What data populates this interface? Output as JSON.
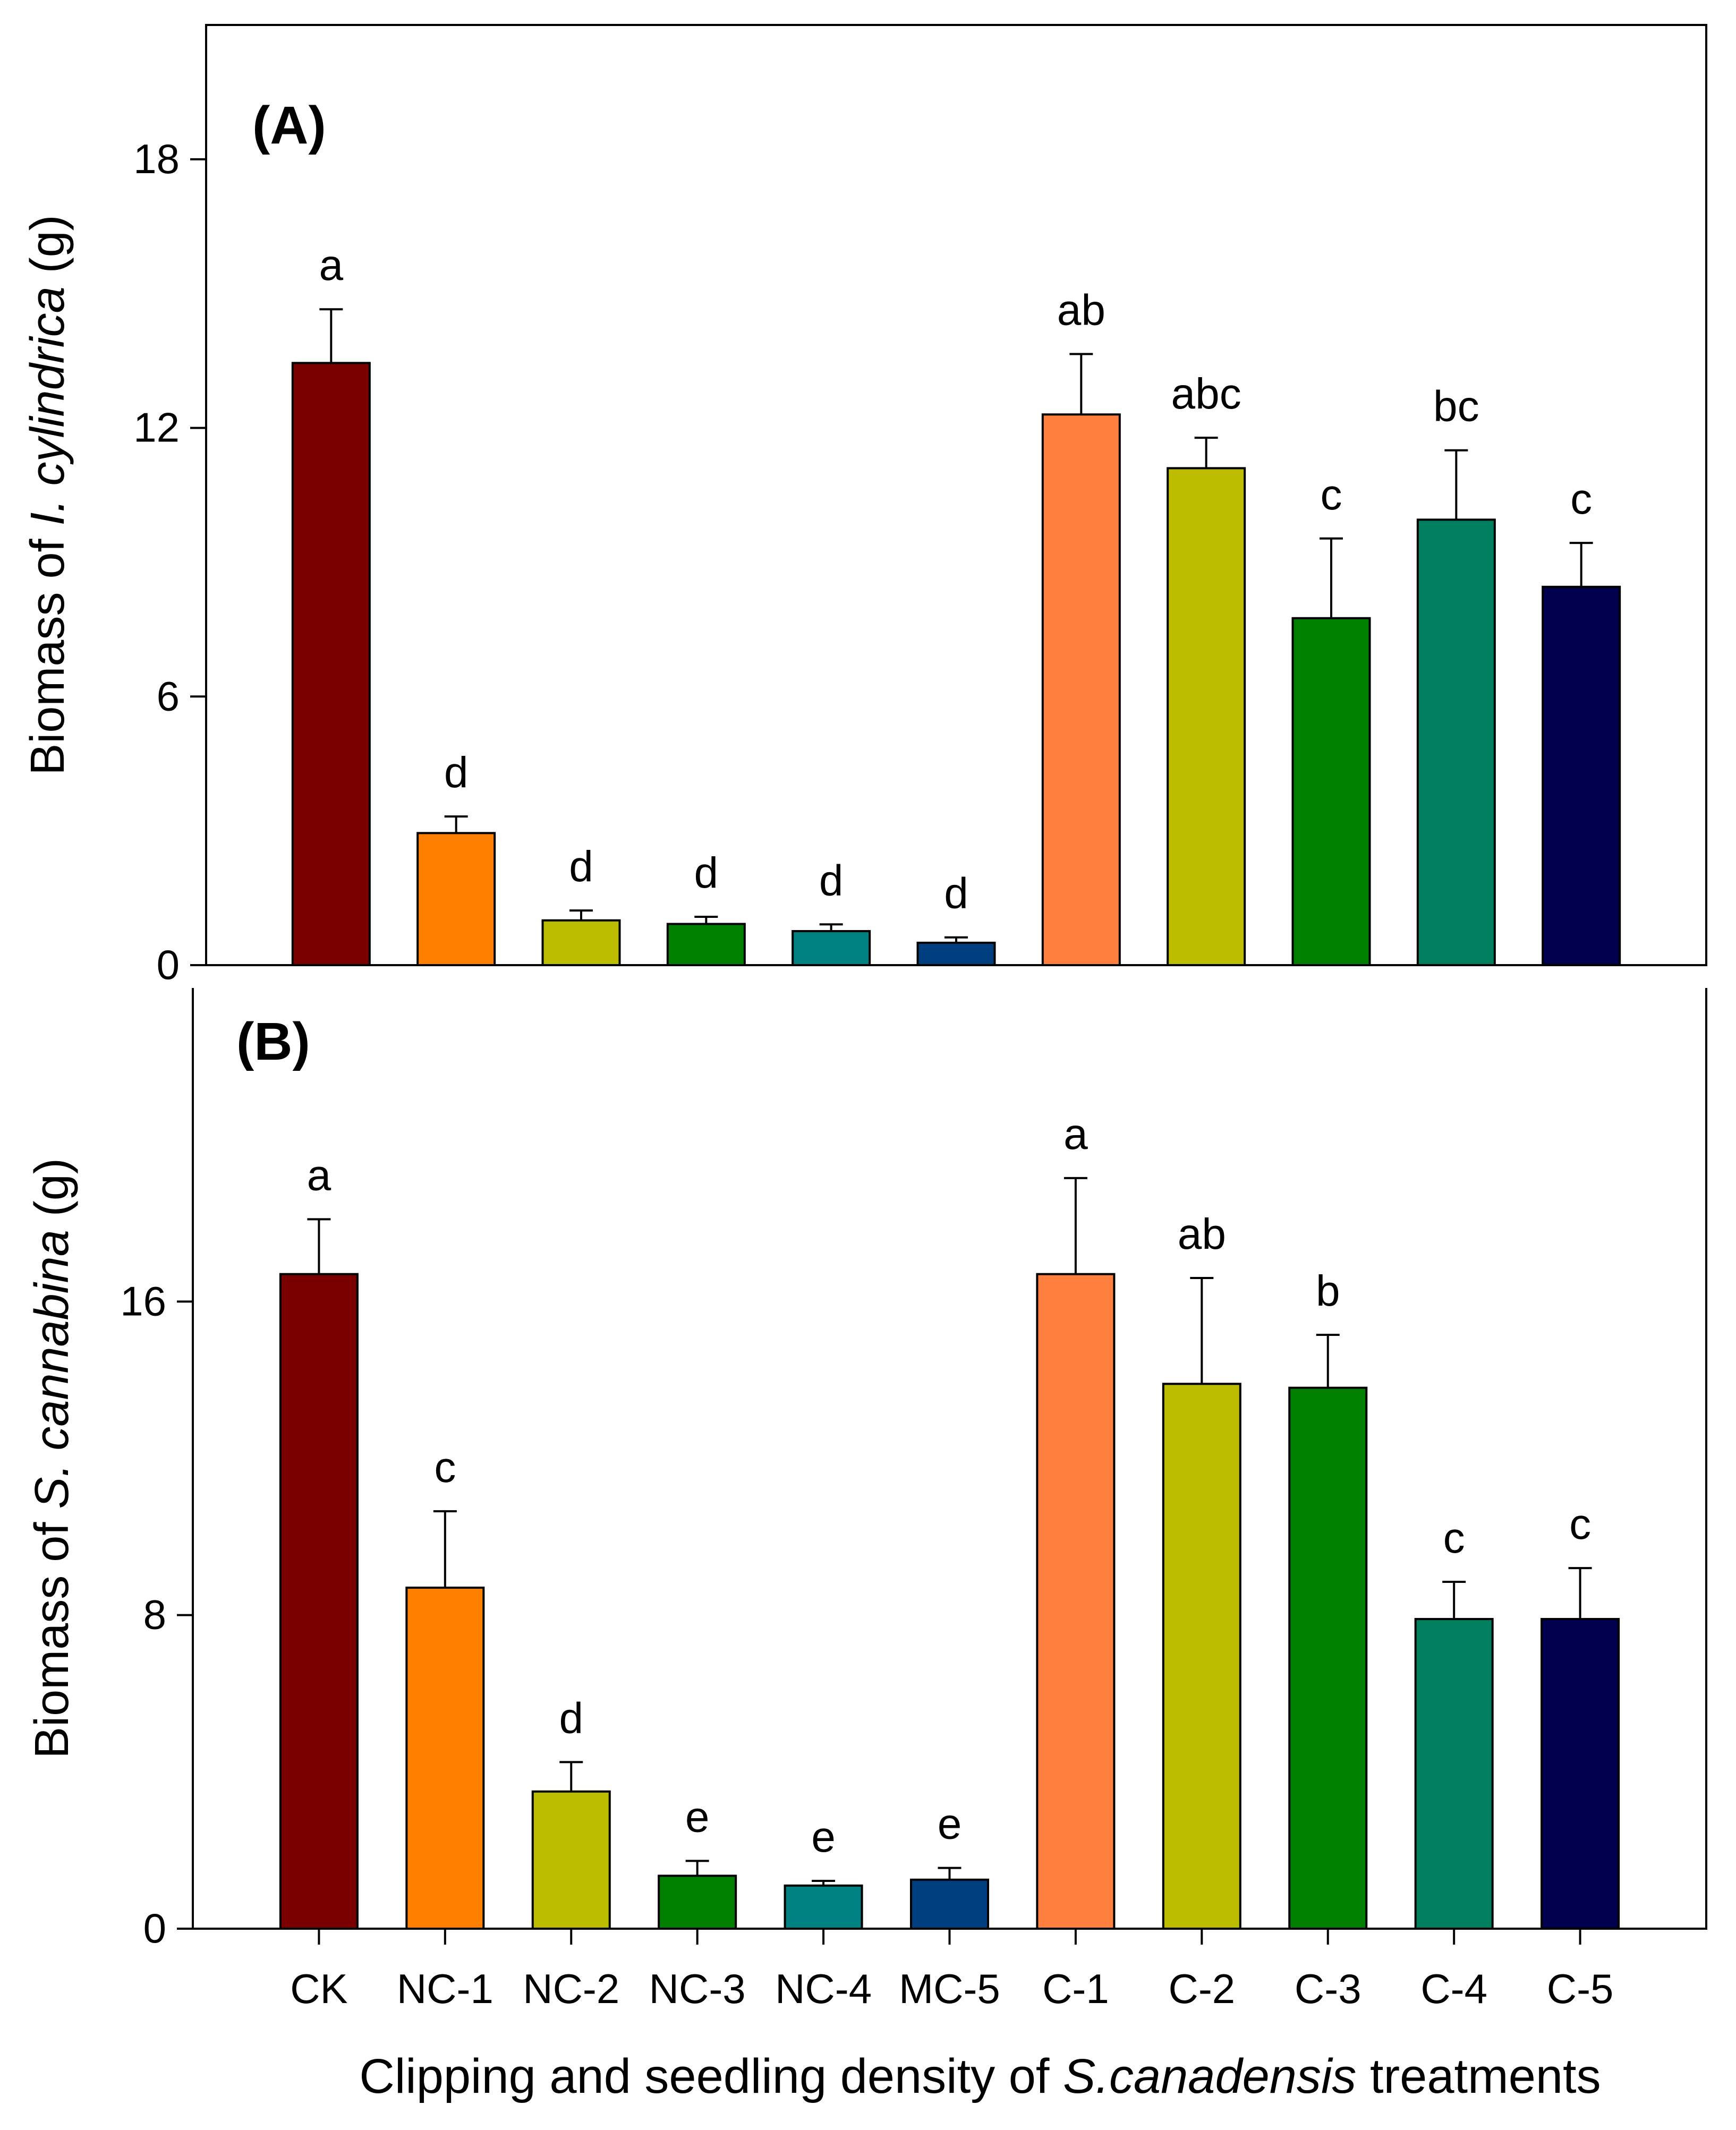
{
  "figure": {
    "xlabel_parts": [
      {
        "text": "Clipping and seedling density of ",
        "italic": false
      },
      {
        "text": "S.canadensis",
        "italic": true
      },
      {
        "text": " treatments",
        "italic": false
      }
    ]
  },
  "chart_data": [
    {
      "type": "bar",
      "panel_label": "(A)",
      "categories": [
        "CK",
        "NC-1",
        "NC-2",
        "NC-3",
        "NC-4",
        "MC-5",
        "C-1",
        "C-2",
        "C-3",
        "C-4",
        "C-5"
      ],
      "values": [
        13.45,
        2.95,
        1.0,
        0.92,
        0.76,
        0.5,
        12.3,
        11.1,
        7.75,
        9.95,
        8.45
      ],
      "errors": [
        1.2,
        0.37,
        0.22,
        0.16,
        0.15,
        0.12,
        1.35,
        0.68,
        1.78,
        1.55,
        0.98
      ],
      "letters": [
        "a",
        "d",
        "d",
        "d",
        "d",
        "d",
        "ab",
        "abc",
        "c",
        "bc",
        "c"
      ],
      "colors": [
        "#7a0000",
        "#ff7f00",
        "#bdbd00",
        "#007f00",
        "#008080",
        "#003f7f",
        "#ff7f3f",
        "#bdbd00",
        "#007f00",
        "#007f5f",
        "#00004f"
      ],
      "ylabel_parts": [
        {
          "text": "Biomass of ",
          "italic": false
        },
        {
          "text": "I. cylindrica",
          "italic": true
        },
        {
          "text": " (g)",
          "italic": false
        }
      ],
      "yticks": [
        "0",
        "6",
        "12",
        "18"
      ],
      "ylim": [
        0,
        21
      ]
    },
    {
      "type": "bar",
      "panel_label": "(B)",
      "categories": [
        "CK",
        "NC-1",
        "NC-2",
        "NC-3",
        "NC-4",
        "MC-5",
        "C-1",
        "C-2",
        "C-3",
        "C-4",
        "C-5"
      ],
      "values": [
        16.7,
        8.7,
        3.5,
        1.35,
        1.1,
        1.25,
        16.7,
        13.9,
        13.8,
        7.9,
        7.9
      ],
      "errors": [
        1.4,
        1.95,
        0.75,
        0.38,
        0.12,
        0.3,
        2.45,
        2.7,
        1.35,
        0.95,
        1.3
      ],
      "letters": [
        "a",
        "c",
        "d",
        "e",
        "e",
        "e",
        "a",
        "ab",
        "b",
        "c",
        "c"
      ],
      "colors": [
        "#7a0000",
        "#ff7f00",
        "#bdbd00",
        "#007f00",
        "#008080",
        "#003f7f",
        "#ff7f3f",
        "#bdbd00",
        "#007f00",
        "#007f5f",
        "#00004f"
      ],
      "ylabel_parts": [
        {
          "text": "Biomass of ",
          "italic": false
        },
        {
          "text": "S. cannabina",
          "italic": true
        },
        {
          "text": " (g)",
          "italic": false
        }
      ],
      "yticks": [
        "0",
        "8",
        "16"
      ],
      "ylim": [
        0,
        24
      ]
    }
  ]
}
